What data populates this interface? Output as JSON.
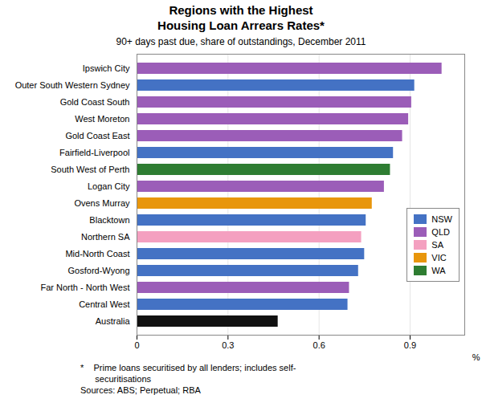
{
  "chart_data": {
    "type": "bar",
    "orientation": "horizontal",
    "title": "Regions with the Highest\nHousing Loan Arrears Rates*",
    "subtitle": "90+ days past due, share of outstandings, December 2011",
    "annotations": [
      "*    Prime loans securitised by all lenders; includes self-",
      "      securitisations",
      "Sources: ABS; Perpetual; RBA"
    ],
    "xlabel": "%",
    "categories": [
      "Ipswich City",
      "Outer South Western Sydney",
      "Gold Coast South",
      "West Moreton",
      "Gold Coast East",
      "Fairfield-Liverpool",
      "South West of Perth",
      "Logan City",
      "Ovens Murray",
      "Blacktown",
      "Northern SA",
      "Mid-North Coast",
      "Gosford-Wyong",
      "Far North - North West",
      "Central West",
      "Australia"
    ],
    "values": [
      1.005,
      0.915,
      0.905,
      0.895,
      0.875,
      0.845,
      0.835,
      0.815,
      0.775,
      0.755,
      0.74,
      0.75,
      0.73,
      0.7,
      0.695,
      0.465
    ],
    "colors": [
      "#9B5DB8",
      "#4472C4",
      "#9B5DB8",
      "#9B5DB8",
      "#9B5DB8",
      "#4472C4",
      "#2E7D32",
      "#9B5DB8",
      "#E8960C",
      "#4472C4",
      "#F4A0C0",
      "#4472C4",
      "#4472C4",
      "#9B5DB8",
      "#4472C4",
      "#111111"
    ],
    "legend": "right",
    "legend_entries": [
      {
        "name": "NSW",
        "color": "#4472C4"
      },
      {
        "name": "QLD",
        "color": "#9B5DB8"
      },
      {
        "name": "SA",
        "color": "#F4A0C0"
      },
      {
        "name": "VIC",
        "color": "#E8960C"
      },
      {
        "name": "WA",
        "color": "#2E7D32"
      }
    ],
    "xlim": [
      0,
      1.08
    ],
    "xticks": [
      0,
      0.3,
      0.6,
      0.9
    ],
    "grid": true
  }
}
